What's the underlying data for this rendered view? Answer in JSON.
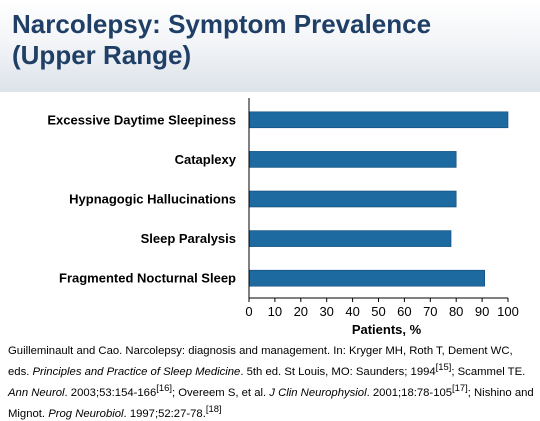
{
  "slide": {
    "title_line1": "Narcolepsy: Symptom Prevalence",
    "title_line2": "(Upper Range)"
  },
  "colors": {
    "bar": "#1d6aa0",
    "bar_edge": "#0f4a78",
    "title": "#1f3f66"
  },
  "chart_data": {
    "type": "bar",
    "orientation": "horizontal",
    "categories": [
      "Excessive Daytime Sleepiness",
      "Cataplexy",
      "Hypnagogic Hallucinations",
      "Sleep Paralysis",
      "Fragmented Nocturnal Sleep"
    ],
    "values": [
      100,
      80,
      80,
      78,
      91
    ],
    "xlabel": "Patients, %",
    "ylabel": "",
    "xlim": [
      0,
      100
    ],
    "xticks": [
      "0",
      "10",
      "20",
      "30",
      "40",
      "50",
      "60",
      "70",
      "80",
      "90",
      "100"
    ],
    "grid": false
  },
  "citation": {
    "p1": "Guilleminault and Cao. Narcolepsy: diagnosis and management. In: Kryger MH, Roth T, Dement WC, eds. ",
    "book": "Principles and Practice of Sleep Medicine",
    "p2": ". 5th ed. St Louis, MO: Saunders; 1994",
    "ref15": "[15]",
    "p3": "; Scammel TE. ",
    "j1": "Ann Neurol",
    "p4": ". 2003;53:154-166",
    "ref16": "[16]",
    "p5": "; Overeem S, et al. ",
    "j2": "J Clin Neurophysiol",
    "p6": ". 2001;18:78-105",
    "ref17": "[17]",
    "p7": "; Nishino and Mignot. ",
    "j3": "Prog Neurobiol",
    "p8": ". 1997;52:27-78.",
    "ref18": "[18]"
  }
}
